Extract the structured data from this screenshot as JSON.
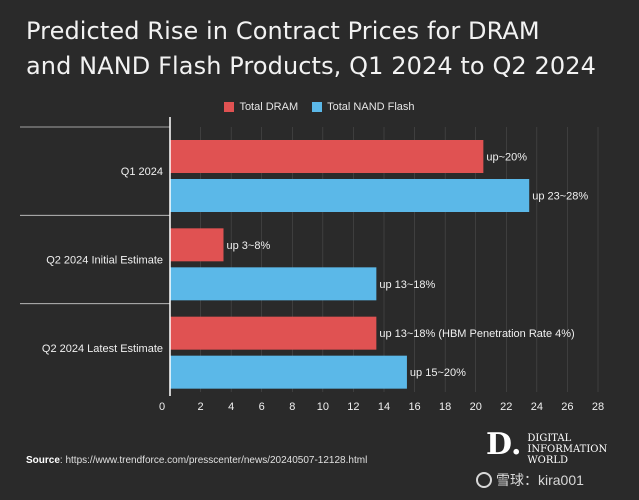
{
  "title_line1": "Predicted Rise in Contract Prices for DRAM",
  "title_line2": "and NAND Flash Products, Q1 2024 to Q2 2024",
  "source_label": "Source",
  "source_text": ": https://www.trendforce.com/presscenter/news/20240507-12128.html",
  "logo": {
    "mark": "D.",
    "line1": "DIGITAL",
    "line2": "INFORMATION",
    "line3": "WORLD"
  },
  "watermark": {
    "icon": "snowball-icon",
    "text": "雪球：kira001"
  },
  "colors": {
    "dram": "#e05252",
    "nand": "#5bb8e8",
    "background": "#2a2a2a",
    "axis": "#ffffff",
    "grid": "#555555"
  },
  "chart_data": {
    "type": "bar",
    "orientation": "horizontal",
    "title": "Predicted Rise in Contract Prices for DRAM and NAND Flash Products, Q1 2024 to Q2 2024",
    "categories": [
      "Q1 2024",
      "Q2 2024 Initial Estimate",
      "Q2 2024 Latest Estimate"
    ],
    "series": [
      {
        "name": "Total DRAM",
        "values": [
          20.5,
          3.5,
          13.5
        ],
        "labels": [
          "up~20%",
          "up 3~8%",
          "up 13~18% (HBM Penetration Rate 4%)"
        ]
      },
      {
        "name": "Total NAND Flash",
        "values": [
          23.5,
          13.5,
          15.5
        ],
        "labels": [
          "up 23~28%",
          "up 13~18%",
          "up 15~20%"
        ]
      }
    ],
    "xlim": [
      0,
      28
    ],
    "xticks": [
      "0",
      "2",
      "4",
      "6",
      "8",
      "10",
      "12",
      "14",
      "16",
      "18",
      "20",
      "22",
      "24",
      "26",
      "28"
    ],
    "grid": "vertical",
    "legend_position": "top-center"
  }
}
